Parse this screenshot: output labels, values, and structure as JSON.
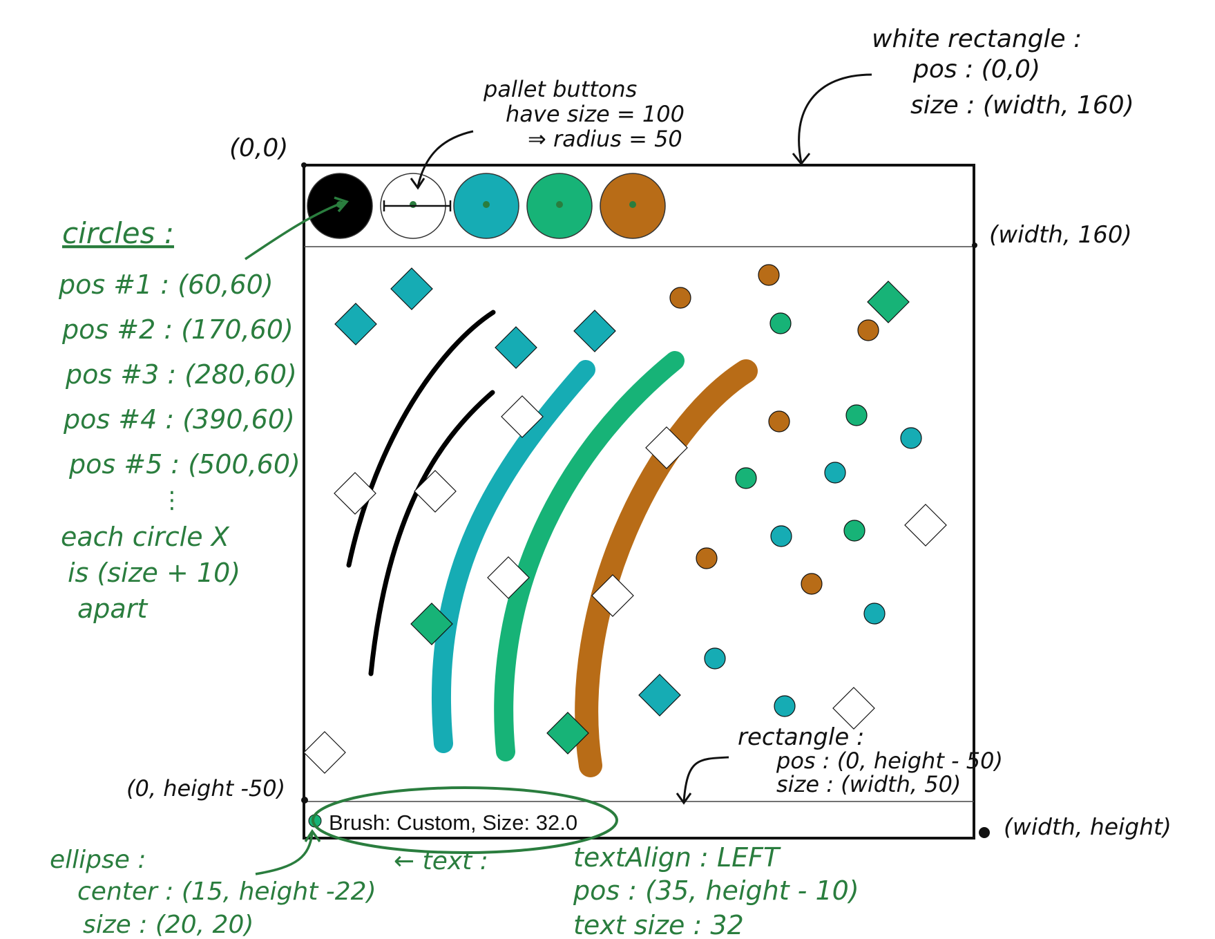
{
  "colors": {
    "ink": "#111111",
    "note_green": "#2a7d3e",
    "teal": "#16acb4",
    "green": "#17b377",
    "orange": "#b86c17",
    "black": "#000000",
    "white": "#ffffff"
  },
  "canvas": {
    "palette": [
      "black",
      "white",
      "teal",
      "green",
      "orange"
    ],
    "status_text": "Brush: Custom, Size: 32.0",
    "status_dot_color": "green",
    "strokes": [
      {
        "color": "black",
        "width": 7
      },
      {
        "color": "black",
        "width": 7
      },
      {
        "color": "teal",
        "width": 28
      },
      {
        "color": "green",
        "width": 28
      },
      {
        "color": "orange",
        "width": 34
      }
    ]
  },
  "annotations": {
    "origin": "(0,0)",
    "top_right": "(width, 160)",
    "bottom_left": "(0, height -50)",
    "bottom_right": "(width, height)",
    "white_rect": [
      "white rectangle :",
      "pos : (0,0)",
      "size : (width, 160)"
    ],
    "pallet": [
      "pallet buttons",
      "have size = 100",
      "⇒ radius = 50"
    ],
    "circles_title": "circles :",
    "circles": [
      "pos #1 : (60,60)",
      "pos #2 : (170,60)",
      "pos #3 : (280,60)",
      "pos #4 : (390,60)",
      "pos #5 : (500,60)"
    ],
    "circles_dots": "⋮",
    "circles_note": [
      "each circle X",
      "is (size + 10)",
      "apart"
    ],
    "bottom_rect": [
      "rectangle :",
      "pos : (0, height - 50)",
      "size : (width, 50)"
    ],
    "ellipse": [
      "ellipse :",
      "center : (15, height -22)",
      "size : (20, 20)"
    ],
    "text_note": "← text :",
    "text_props": [
      "textAlign : LEFT",
      "pos : (35, height - 10)",
      "text size : 32"
    ]
  }
}
